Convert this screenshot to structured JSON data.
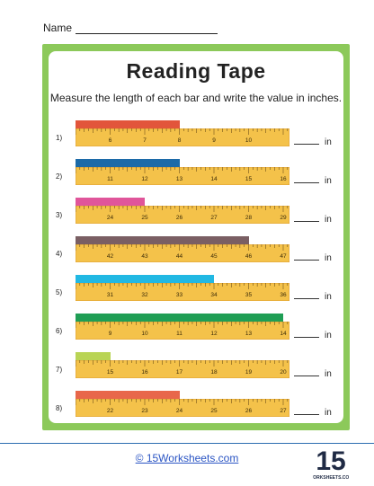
{
  "name_label": "Name",
  "title": "Reading Tape",
  "instructions": "Measure the length of each bar and write the value in inches.",
  "unit": "in",
  "footer_text": "© 15Worksheets.com",
  "logo": {
    "number": "15",
    "text": "WORKSHEETS.COM"
  },
  "colors": {
    "frame": "#8cc95a",
    "ruler": "#f4c24a",
    "ruler_edge": "#d9962b"
  },
  "problems": [
    {
      "label": "1)",
      "start": 5,
      "bar_end": 8,
      "color": "#e2553b",
      "ticks": [
        5,
        6,
        7,
        8,
        9,
        10
      ]
    },
    {
      "label": "2)",
      "start": 10,
      "bar_end": 13,
      "color": "#1c6aa8",
      "ticks": [
        10,
        11,
        12,
        13,
        14,
        15,
        16
      ]
    },
    {
      "label": "3)",
      "start": 23,
      "bar_end": 25,
      "color": "#e0559a",
      "ticks": [
        23,
        24,
        25,
        26,
        27,
        28,
        29
      ]
    },
    {
      "label": "4)",
      "start": 41,
      "bar_end": 46,
      "color": "#7a5f63",
      "ticks": [
        41,
        42,
        43,
        44,
        45,
        46,
        47
      ]
    },
    {
      "label": "5)",
      "start": 30,
      "bar_end": 34,
      "color": "#21b8e3",
      "ticks": [
        30,
        31,
        32,
        33,
        34,
        35,
        36
      ]
    },
    {
      "label": "6)",
      "start": 8,
      "bar_end": 14,
      "color": "#1f9e55",
      "ticks": [
        8,
        9,
        10,
        11,
        12,
        13,
        14
      ]
    },
    {
      "label": "7)",
      "start": 14,
      "bar_end": 15,
      "color": "#b9d455",
      "ticks": [
        14,
        15,
        16,
        17,
        18,
        19,
        20
      ]
    },
    {
      "label": "8)",
      "start": 21,
      "bar_end": 24,
      "color": "#e8674a",
      "ticks": [
        21,
        22,
        23,
        24,
        25,
        26,
        27
      ]
    }
  ]
}
